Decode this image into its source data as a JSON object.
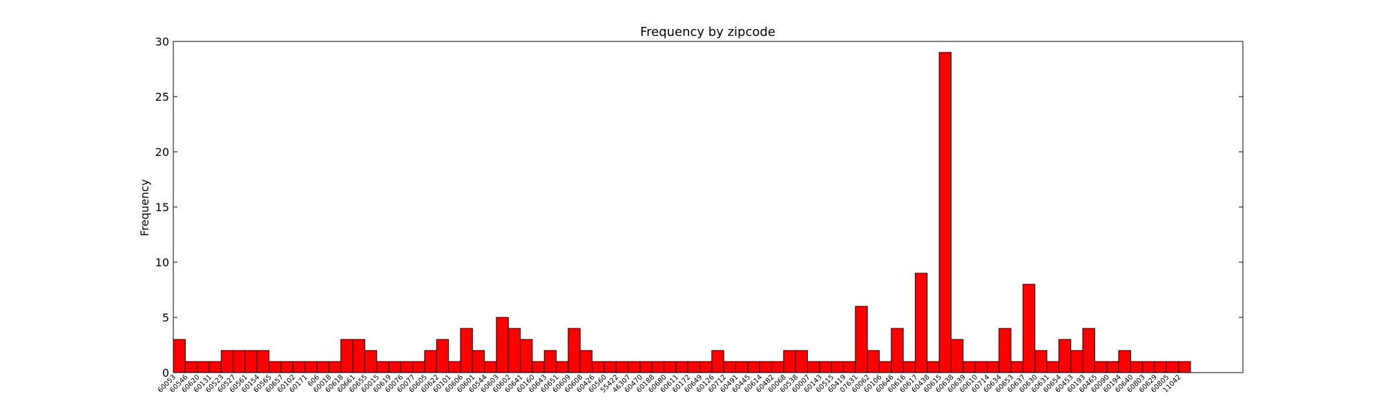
{
  "chart_data": {
    "type": "bar",
    "title": "Frequency by zipcode",
    "xlabel": "",
    "ylabel": "Frequency",
    "ylim": [
      0,
      30
    ],
    "yticks": [
      0,
      5,
      10,
      15,
      20,
      25,
      30
    ],
    "grid": false,
    "colors": {
      "bar_fill": "#ff0000",
      "bar_edge": "#000000"
    },
    "categories": [
      "60053",
      "60546",
      "60620",
      "60131",
      "60523",
      "60527",
      "60561",
      "60154",
      "60565",
      "60657",
      "60102",
      "60171",
      "606",
      "60018",
      "60618",
      "60661",
      "60655",
      "60015",
      "60619",
      "60076",
      "60077",
      "60605",
      "60622",
      "60101",
      "60606",
      "60601",
      "60544",
      "60603",
      "60602",
      "60641",
      "60160",
      "60643",
      "60651",
      "60609",
      "60608",
      "60426",
      "60560",
      "55422",
      "46307",
      "60470",
      "60188",
      "60680",
      "60611",
      "60172",
      "60649",
      "60126",
      "60712",
      "60491",
      "60445",
      "60614",
      "60482",
      "60068",
      "60538",
      "60007",
      "60143",
      "60515",
      "60419",
      "07631",
      "60062",
      "60106",
      "60646",
      "60616",
      "60617",
      "60438",
      "60615",
      "60638",
      "60639",
      "60610",
      "60714",
      "60634",
      "60653",
      "60637",
      "60630",
      "60631",
      "60654",
      "60453",
      "60193",
      "60465",
      "60090",
      "60194",
      "60640",
      "60803",
      "60629",
      "60805",
      "11042"
    ],
    "values": [
      3,
      1,
      1,
      1,
      2,
      2,
      2,
      2,
      1,
      1,
      1,
      1,
      1,
      1,
      3,
      3,
      2,
      1,
      1,
      1,
      1,
      2,
      3,
      1,
      4,
      2,
      1,
      5,
      4,
      3,
      1,
      2,
      1,
      4,
      2,
      1,
      1,
      1,
      1,
      1,
      1,
      1,
      1,
      1,
      1,
      2,
      1,
      1,
      1,
      1,
      1,
      2,
      2,
      1,
      1,
      1,
      1,
      6,
      2,
      1,
      4,
      1,
      9,
      1,
      29,
      3,
      1,
      1,
      1,
      4,
      1,
      8,
      2,
      1,
      3,
      2,
      4,
      1,
      1,
      2,
      1,
      1,
      1,
      1,
      1
    ]
  }
}
